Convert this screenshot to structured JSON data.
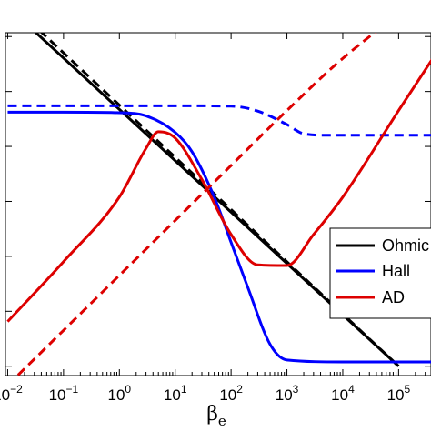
{
  "chart_data": {
    "type": "line",
    "x_scale": "log",
    "y_scale": "log",
    "x_range": [
      0.01,
      1000000
    ],
    "y_range": [
      1e-06,
      10.0
    ],
    "x_ticks": [
      {
        "value": 0.01,
        "base": "10",
        "exp": "−2"
      },
      {
        "value": 0.1,
        "base": "10",
        "exp": "−1"
      },
      {
        "value": 1,
        "base": "10",
        "exp": "0"
      },
      {
        "value": 10,
        "base": "10",
        "exp": "1"
      },
      {
        "value": 100,
        "base": "10",
        "exp": "2"
      },
      {
        "value": 1000,
        "base": "10",
        "exp": "3"
      },
      {
        "value": 10000,
        "base": "10",
        "exp": "4"
      },
      {
        "value": 100000,
        "base": "10",
        "exp": "5"
      }
    ],
    "xlabel": {
      "main": "β",
      "sub": "e"
    },
    "legend": {
      "position": "center-right"
    },
    "series": [
      {
        "name": "Ohmic",
        "color": "#000000",
        "dash": "solid",
        "x": [
          0.01,
          100000
        ],
        "y": [
          3.5,
          1e-06
        ]
      },
      {
        "name": "",
        "color": "#000000",
        "dash": "dashed",
        "x": [
          0.01,
          100000
        ],
        "y": [
          4.5,
          1e-06
        ]
      },
      {
        "name": "Hall",
        "color": "#0000ff",
        "dash": "solid",
        "x": [
          0.01,
          0.1,
          1,
          3,
          10,
          20,
          50,
          100,
          200,
          500,
          1000,
          10000,
          1000000
        ],
        "y": [
          0.042,
          0.042,
          0.041,
          0.036,
          0.018,
          0.008,
          0.0012,
          0.00018,
          2.7e-05,
          2.5e-06,
          1.3e-06,
          1.2e-06,
          1.2e-06
        ]
      },
      {
        "name": "",
        "color": "#0000ff",
        "dash": "dashed",
        "x": [
          0.01,
          1,
          10,
          100,
          300,
          1000,
          2000,
          5000,
          10000,
          1000000
        ],
        "y": [
          0.055,
          0.055,
          0.055,
          0.054,
          0.044,
          0.025,
          0.017,
          0.016,
          0.016,
          0.016
        ]
      },
      {
        "name": "AD",
        "color": "#dd0000",
        "dash": "solid",
        "x": [
          0.01,
          0.1,
          1,
          3,
          5,
          10,
          30,
          100,
          300,
          1000,
          3000,
          10000,
          100000,
          1000000
        ],
        "y": [
          6.5e-06,
          8e-05,
          0.0012,
          0.0092,
          0.0185,
          0.0142,
          0.0025,
          0.00025,
          7e-05,
          6.8e-05,
          0.00025,
          0.0012,
          0.045,
          1.6
        ]
      },
      {
        "name": "",
        "color": "#dd0000",
        "dash": "dashed",
        "x": [
          0.01,
          0.1,
          1,
          10,
          100,
          1000,
          10000,
          100000,
          1000000
        ],
        "y": [
          4.5e-07,
          4.5e-06,
          4.5e-05,
          0.00045,
          0.0045,
          0.045,
          0.4,
          2.4,
          8.5
        ]
      }
    ]
  }
}
